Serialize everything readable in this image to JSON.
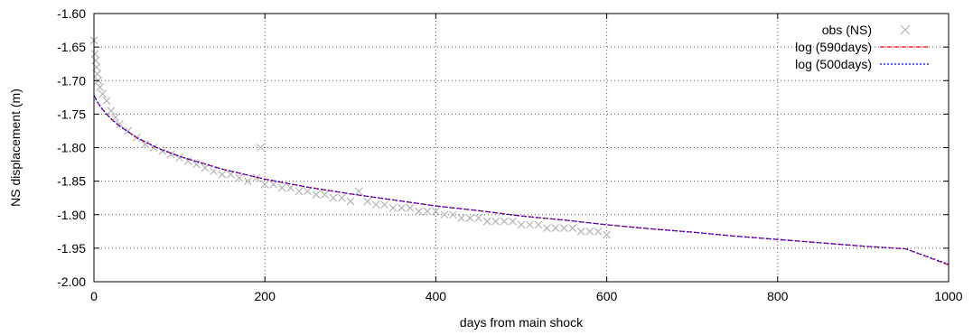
{
  "chart_data": {
    "type": "scatter",
    "title": "",
    "xlabel": "days from main shock",
    "ylabel": "NS displacement (m)",
    "xlim": [
      0,
      1000
    ],
    "ylim": [
      -2.0,
      -1.6
    ],
    "x_ticks": [
      0,
      200,
      400,
      600,
      800,
      1000
    ],
    "x_tick_labels": [
      "0",
      "200",
      "400",
      "600",
      "800",
      "1000"
    ],
    "y_ticks": [
      -1.6,
      -1.65,
      -1.7,
      -1.75,
      -1.8,
      -1.85,
      -1.9,
      -1.95,
      -2.0
    ],
    "y_tick_labels": [
      "-1.60",
      "-1.65",
      "-1.70",
      "-1.75",
      "-1.80",
      "-1.85",
      "-1.90",
      "-1.95",
      "-2.00"
    ],
    "grid": true,
    "legend_position": "top-right",
    "series": [
      {
        "name": "obs (NS)",
        "kind": "scatter",
        "marker": "x",
        "color": "#b4b4b4",
        "x": [
          0,
          1,
          2,
          3,
          4,
          5,
          7,
          10,
          15,
          20,
          25,
          30,
          40,
          50,
          60,
          70,
          80,
          90,
          100,
          110,
          120,
          130,
          140,
          150,
          160,
          170,
          180,
          190,
          195,
          200,
          210,
          220,
          230,
          240,
          250,
          260,
          270,
          280,
          290,
          300,
          310,
          320,
          330,
          340,
          350,
          360,
          370,
          380,
          390,
          400,
          410,
          420,
          430,
          440,
          450,
          460,
          470,
          480,
          490,
          500,
          510,
          520,
          530,
          540,
          550,
          560,
          570,
          580,
          590,
          600
        ],
        "y": [
          -1.64,
          -1.66,
          -1.67,
          -1.68,
          -1.69,
          -1.7,
          -1.71,
          -1.72,
          -1.73,
          -1.745,
          -1.755,
          -1.765,
          -1.775,
          -1.785,
          -1.795,
          -1.8,
          -1.805,
          -1.81,
          -1.815,
          -1.82,
          -1.825,
          -1.83,
          -1.835,
          -1.84,
          -1.84,
          -1.845,
          -1.85,
          -1.845,
          -1.8,
          -1.855,
          -1.855,
          -1.86,
          -1.86,
          -1.865,
          -1.865,
          -1.87,
          -1.87,
          -1.875,
          -1.875,
          -1.88,
          -1.865,
          -1.88,
          -1.885,
          -1.885,
          -1.89,
          -1.89,
          -1.89,
          -1.895,
          -1.895,
          -1.895,
          -1.9,
          -1.9,
          -1.905,
          -1.905,
          -1.905,
          -1.91,
          -1.91,
          -1.91,
          -1.91,
          -1.915,
          -1.915,
          -1.915,
          -1.92,
          -1.92,
          -1.92,
          -1.92,
          -1.925,
          -1.925,
          -1.925,
          -1.93
        ]
      },
      {
        "name": "log (590days)",
        "kind": "line",
        "dash": "dashed",
        "color": "#ff0000",
        "x": [
          0,
          5,
          10,
          20,
          30,
          50,
          75,
          100,
          150,
          200,
          250,
          300,
          350,
          400,
          450,
          500,
          550,
          600,
          650,
          700,
          750,
          800,
          850,
          900,
          950,
          1000
        ],
        "y": [
          -1.722,
          -1.734,
          -1.743,
          -1.757,
          -1.768,
          -1.785,
          -1.801,
          -1.813,
          -1.832,
          -1.847,
          -1.859,
          -1.869,
          -1.878,
          -1.887,
          -1.894,
          -1.902,
          -1.908,
          -1.915,
          -1.921,
          -1.926,
          -1.932,
          -1.937,
          -1.942,
          -1.947,
          -1.951,
          -1.975
        ]
      },
      {
        "name": "log (500days)",
        "kind": "line",
        "dash": "dotted",
        "color": "#0000ff",
        "x": [
          0,
          5,
          10,
          20,
          30,
          50,
          75,
          100,
          150,
          200,
          250,
          300,
          350,
          400,
          450,
          500,
          550,
          600,
          650,
          700,
          750,
          800,
          850,
          900,
          950,
          1000
        ],
        "y": [
          -1.722,
          -1.734,
          -1.743,
          -1.757,
          -1.768,
          -1.785,
          -1.801,
          -1.813,
          -1.832,
          -1.847,
          -1.859,
          -1.869,
          -1.878,
          -1.887,
          -1.894,
          -1.902,
          -1.908,
          -1.915,
          -1.921,
          -1.926,
          -1.932,
          -1.937,
          -1.942,
          -1.947,
          -1.951,
          -1.974
        ]
      }
    ]
  }
}
